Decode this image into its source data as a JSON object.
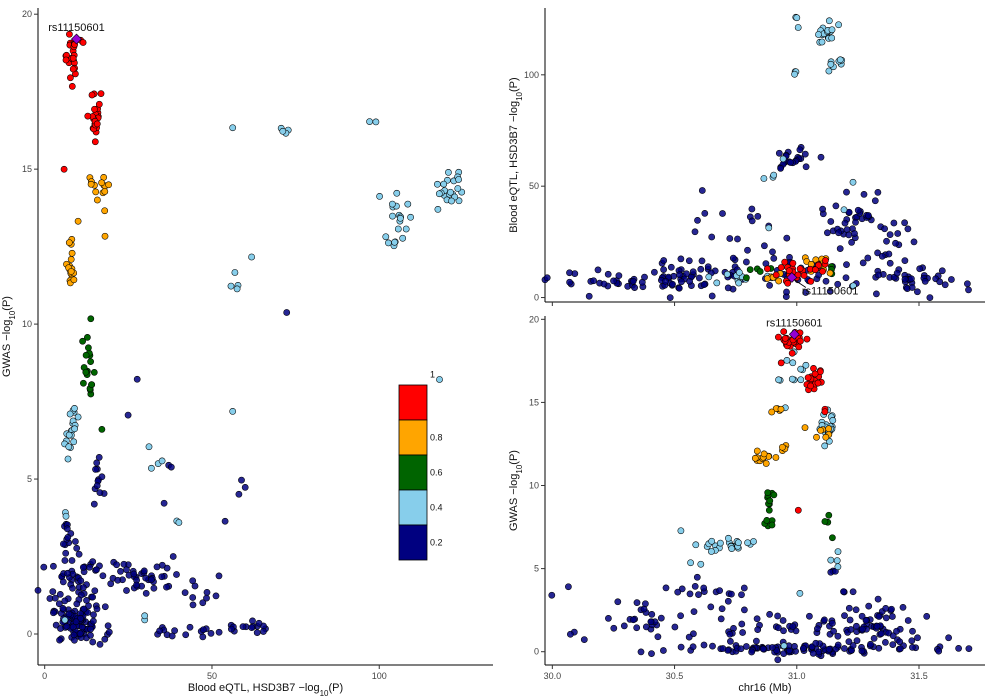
{
  "legend": {
    "breaks": [
      "0.2",
      "0.4",
      "0.6",
      "0.8",
      "1"
    ],
    "colors": [
      "#000080",
      "#87CEEB",
      "#006400",
      "#FFA500",
      "#FF0000"
    ]
  },
  "lead_color": "#9400D3",
  "lead_snp": "rs11150601",
  "chart_data": [
    {
      "type": "scatter",
      "panel": "left",
      "xlabel": "Blood eQTL, HSD3B7 −log10(P)",
      "ylabel": "GWAS −log10(P)",
      "xlim": [
        -2,
        134
      ],
      "ylim": [
        -1,
        20.2
      ],
      "xticks": [
        0,
        50,
        100
      ],
      "yticks": [
        0,
        5,
        10,
        15,
        20
      ],
      "annotation": "rs11150601",
      "lead": [
        9.5,
        19.2
      ],
      "groups": [
        {
          "r2_bin": "1",
          "clusters": [
            {
              "cx": 8,
              "cy": 18.7,
              "sx": 1.2,
              "sy": 0.4,
              "n": 24
            },
            {
              "cx": 15,
              "cy": 16.6,
              "sx": 1.0,
              "sy": 0.5,
              "n": 22
            },
            {
              "cx": 6,
              "cy": 14.7,
              "sx": 0.5,
              "sy": 0.1,
              "n": 1
            }
          ]
        },
        {
          "r2_bin": "0.8",
          "clusters": [
            {
              "cx": 8,
              "cy": 11.9,
              "sx": 0.6,
              "sy": 0.5,
              "n": 18
            },
            {
              "cx": 12,
              "cy": 14.5,
              "sx": 1.2,
              "sy": 0.2,
              "n": 5
            },
            {
              "cx": 18,
              "cy": 14.4,
              "sx": 0.9,
              "sy": 0.3,
              "n": 9
            },
            {
              "cx": 10,
              "cy": 13.4,
              "sx": 0.3,
              "sy": 0.1,
              "n": 1
            },
            {
              "cx": 18,
              "cy": 13.1,
              "sx": 0.3,
              "sy": 0.1,
              "n": 1
            }
          ]
        },
        {
          "r2_bin": "0.6",
          "clusters": [
            {
              "cx": 13,
              "cy": 9.0,
              "sx": 0.7,
              "sy": 0.5,
              "n": 10
            },
            {
              "cx": 13,
              "cy": 8.1,
              "sx": 1.0,
              "sy": 0.3,
              "n": 10
            },
            {
              "cx": 17,
              "cy": 6.7,
              "sx": 0.3,
              "sy": 0.1,
              "n": 1
            }
          ]
        },
        {
          "r2_bin": "0.4",
          "clusters": [
            {
              "cx": 8,
              "cy": 6.6,
              "sx": 1.0,
              "sy": 0.4,
              "n": 20
            },
            {
              "cx": 105,
              "cy": 13.3,
              "sx": 1.8,
              "sy": 0.5,
              "n": 20
            },
            {
              "cx": 121,
              "cy": 14.3,
              "sx": 2.5,
              "sy": 0.3,
              "n": 22
            },
            {
              "cx": 71,
              "cy": 16.25,
              "sx": 0.8,
              "sy": 0.05,
              "n": 4
            },
            {
              "cx": 98,
              "cy": 16.9,
              "sx": 1.2,
              "sy": 0.25,
              "n": 2
            },
            {
              "cx": 57,
              "cy": 11.3,
              "sx": 0.8,
              "sy": 0.25,
              "n": 4
            },
            {
              "cx": 33,
              "cy": 5.5,
              "sx": 1.5,
              "sy": 0.2,
              "n": 4
            },
            {
              "cx": 6,
              "cy": 3.9,
              "sx": 0.5,
              "sy": 0.1,
              "n": 2
            },
            {
              "cx": 56,
              "cy": 16.3,
              "sx": 0.2,
              "sy": 0.05,
              "n": 1
            },
            {
              "cx": 62,
              "cy": 12.2,
              "sx": 0.2,
              "sy": 0.05,
              "n": 1
            },
            {
              "cx": 56,
              "cy": 7.2,
              "sx": 0.2,
              "sy": 0.05,
              "n": 1
            },
            {
              "cx": 40,
              "cy": 3.6,
              "sx": 0.5,
              "sy": 0.05,
              "n": 2
            },
            {
              "cx": 30,
              "cy": 0.5,
              "sx": 0.5,
              "sy": 0.05,
              "n": 2
            },
            {
              "cx": 6,
              "cy": 0.4,
              "sx": 0.3,
              "sy": 0.05,
              "n": 1
            },
            {
              "cx": 118,
              "cy": 8.2,
              "sx": 0.3,
              "sy": 0.05,
              "n": 1
            }
          ]
        },
        {
          "r2_bin": "0.2",
          "clusters": [
            {
              "cx": 10,
              "cy": 0.3,
              "sx": 4.0,
              "sy": 0.3,
              "n": 80
            },
            {
              "cx": 10,
              "cy": 1.5,
              "sx": 4.0,
              "sy": 0.7,
              "n": 60
            },
            {
              "cx": 7,
              "cy": 3.2,
              "sx": 0.8,
              "sy": 0.6,
              "n": 12
            },
            {
              "cx": 16,
              "cy": 5.0,
              "sx": 1.2,
              "sy": 0.4,
              "n": 12
            },
            {
              "cx": 30,
              "cy": 1.9,
              "sx": 6.0,
              "sy": 0.3,
              "n": 40
            },
            {
              "cx": 47,
              "cy": 1.4,
              "sx": 2.5,
              "sy": 0.4,
              "n": 10
            },
            {
              "cx": 60,
              "cy": 0.2,
              "sx": 3.0,
              "sy": 0.12,
              "n": 15
            },
            {
              "cx": 38,
              "cy": 0.1,
              "sx": 6.0,
              "sy": 0.1,
              "n": 15
            },
            {
              "cx": 60,
              "cy": 4.6,
              "sx": 1.0,
              "sy": 0.25,
              "n": 3
            },
            {
              "cx": 28,
              "cy": 8.3,
              "sx": 0.3,
              "sy": 0.05,
              "n": 1
            },
            {
              "cx": 72,
              "cy": 10.4,
              "sx": 0.3,
              "sy": 0.05,
              "n": 1
            },
            {
              "cx": 107,
              "cy": 7.6,
              "sx": 0.3,
              "sy": 0.05,
              "n": 1
            },
            {
              "cx": 37,
              "cy": 5.3,
              "sx": 1.2,
              "sy": 0.2,
              "n": 2
            },
            {
              "cx": 54,
              "cy": 3.6,
              "sx": 0.3,
              "sy": 0.05,
              "n": 1
            },
            {
              "cx": 36,
              "cy": 4.2,
              "sx": 0.3,
              "sy": 0.05,
              "n": 1
            },
            {
              "cx": 25,
              "cy": 7.0,
              "sx": 0.3,
              "sy": 0.05,
              "n": 1
            }
          ]
        }
      ]
    },
    {
      "type": "scatter",
      "panel": "top-right",
      "xlabel": "",
      "ylabel": "Blood eQTL, HSD3B7 −log10(P)",
      "xlim": [
        29.97,
        31.77
      ],
      "ylim": [
        -2,
        130
      ],
      "xticks": [],
      "yticks": [
        0,
        50,
        100
      ],
      "annotation": "rs11150601",
      "lead": [
        30.98,
        9
      ],
      "groups": [
        {
          "r2_bin": "1",
          "clusters": [
            {
              "cx": 31.0,
              "cy": 11,
              "sx": 0.05,
              "sy": 2.5,
              "n": 22
            },
            {
              "cx": 31.1,
              "cy": 14,
              "sx": 0.03,
              "sy": 1.5,
              "n": 6
            }
          ]
        },
        {
          "r2_bin": "0.8",
          "clusters": [
            {
              "cx": 31.08,
              "cy": 15,
              "sx": 0.03,
              "sy": 2.0,
              "n": 10
            },
            {
              "cx": 30.9,
              "cy": 9,
              "sx": 0.02,
              "sy": 1.0,
              "n": 6
            }
          ]
        },
        {
          "r2_bin": "0.6",
          "clusters": [
            {
              "cx": 30.85,
              "cy": 11,
              "sx": 0.03,
              "sy": 1.5,
              "n": 5
            },
            {
              "cx": 31.15,
              "cy": 14,
              "sx": 0.02,
              "sy": 1.0,
              "n": 4
            }
          ]
        },
        {
          "r2_bin": "0.4",
          "clusters": [
            {
              "cx": 31.13,
              "cy": 118,
              "sx": 0.03,
              "sy": 3.0,
              "n": 16
            },
            {
              "cx": 31.15,
              "cy": 105,
              "sx": 0.02,
              "sy": 2.0,
              "n": 8
            },
            {
              "cx": 31.01,
              "cy": 125,
              "sx": 0.01,
              "sy": 2.0,
              "n": 3
            },
            {
              "cx": 30.99,
              "cy": 100,
              "sx": 0.01,
              "sy": 2.0,
              "n": 3
            },
            {
              "cx": 30.95,
              "cy": 62,
              "sx": 0.01,
              "sy": 1.0,
              "n": 1
            },
            {
              "cx": 30.88,
              "cy": 55,
              "sx": 0.03,
              "sy": 2.0,
              "n": 3
            },
            {
              "cx": 31.23,
              "cy": 52,
              "sx": 0.01,
              "sy": 1.0,
              "n": 1
            },
            {
              "cx": 31.2,
              "cy": 40,
              "sx": 0.01,
              "sy": 1.0,
              "n": 1
            },
            {
              "cx": 30.77,
              "cy": 9,
              "sx": 0.06,
              "sy": 1.0,
              "n": 14
            },
            {
              "cx": 30.89,
              "cy": 32,
              "sx": 0.01,
              "sy": 1.0,
              "n": 1
            },
            {
              "cx": 31.23,
              "cy": 6,
              "sx": 0.01,
              "sy": 1.0,
              "n": 1
            }
          ]
        },
        {
          "r2_bin": "0.2",
          "clusters": [
            {
              "cx": 30.97,
              "cy": 62,
              "sx": 0.05,
              "sy": 3.0,
              "n": 22
            },
            {
              "cx": 31.25,
              "cy": 36,
              "sx": 0.05,
              "sy": 5.0,
              "n": 20
            },
            {
              "cx": 31.38,
              "cy": 24,
              "sx": 0.04,
              "sy": 5.0,
              "n": 18
            },
            {
              "cx": 30.75,
              "cy": 26,
              "sx": 0.08,
              "sy": 10.0,
              "n": 20
            },
            {
              "cx": 30.6,
              "cy": 10,
              "sx": 0.1,
              "sy": 3.5,
              "n": 50
            },
            {
              "cx": 30.3,
              "cy": 7,
              "sx": 0.15,
              "sy": 2.5,
              "n": 35
            },
            {
              "cx": 31.45,
              "cy": 7,
              "sx": 0.12,
              "sy": 3.0,
              "n": 40
            },
            {
              "cx": 31.15,
              "cy": 30,
              "sx": 0.05,
              "sy": 6.0,
              "n": 15
            },
            {
              "cx": 31.0,
              "cy": 10,
              "sx": 0.1,
              "sy": 4.0,
              "n": 30
            },
            {
              "cx": 30.62,
              "cy": 38,
              "sx": 0.01,
              "sy": 1.0,
              "n": 1
            },
            {
              "cx": 31.3,
              "cy": 46,
              "sx": 0.02,
              "sy": 1.0,
              "n": 2
            }
          ]
        }
      ]
    },
    {
      "type": "scatter",
      "panel": "bottom-right",
      "xlabel": "chr16 (Mb)",
      "ylabel": "GWAS −log10(P)",
      "xlim": [
        29.97,
        31.77
      ],
      "ylim": [
        -0.8,
        20.2
      ],
      "xticks": [
        30.0,
        30.5,
        31.0,
        31.5
      ],
      "xtick_labels": [
        "30.0",
        "30.5",
        "31.0",
        "31.5"
      ],
      "yticks": [
        0,
        5,
        10,
        15,
        20
      ],
      "annotation": "rs11150601",
      "lead": [
        30.99,
        19.1
      ],
      "groups": [
        {
          "r2_bin": "1",
          "clusters": [
            {
              "cx": 30.98,
              "cy": 18.7,
              "sx": 0.03,
              "sy": 0.3,
              "n": 24
            },
            {
              "cx": 31.07,
              "cy": 16.3,
              "sx": 0.02,
              "sy": 0.3,
              "n": 18
            },
            {
              "cx": 31.09,
              "cy": 14.5,
              "sx": 0.015,
              "sy": 0.1,
              "n": 2
            },
            {
              "cx": 30.92,
              "cy": 17.2,
              "sx": 0.01,
              "sy": 0.1,
              "n": 1
            },
            {
              "cx": 31.01,
              "cy": 8.6,
              "sx": 0.01,
              "sy": 0.1,
              "n": 1
            }
          ]
        },
        {
          "r2_bin": "0.8",
          "clusters": [
            {
              "cx": 30.86,
              "cy": 11.7,
              "sx": 0.02,
              "sy": 0.2,
              "n": 14
            },
            {
              "cx": 30.92,
              "cy": 14.5,
              "sx": 0.015,
              "sy": 0.1,
              "n": 5
            },
            {
              "cx": 30.95,
              "cy": 12.3,
              "sx": 0.015,
              "sy": 0.2,
              "n": 4
            },
            {
              "cx": 31.1,
              "cy": 13.3,
              "sx": 0.02,
              "sy": 0.2,
              "n": 6
            },
            {
              "cx": 31.05,
              "cy": 13.5,
              "sx": 0.01,
              "sy": 0.1,
              "n": 1
            }
          ]
        },
        {
          "r2_bin": "0.6",
          "clusters": [
            {
              "cx": 30.89,
              "cy": 9.2,
              "sx": 0.01,
              "sy": 0.3,
              "n": 8
            },
            {
              "cx": 30.88,
              "cy": 8.1,
              "sx": 0.015,
              "sy": 0.3,
              "n": 6
            },
            {
              "cx": 31.13,
              "cy": 8.0,
              "sx": 0.01,
              "sy": 0.2,
              "n": 3
            },
            {
              "cx": 31.15,
              "cy": 6.7,
              "sx": 0.01,
              "sy": 0.1,
              "n": 1
            }
          ]
        },
        {
          "r2_bin": "0.4",
          "clusters": [
            {
              "cx": 30.73,
              "cy": 6.4,
              "sx": 0.06,
              "sy": 0.2,
              "n": 22
            },
            {
              "cx": 31.13,
              "cy": 13.5,
              "sx": 0.02,
              "sy": 0.4,
              "n": 20
            },
            {
              "cx": 31.02,
              "cy": 17.0,
              "sx": 0.02,
              "sy": 0.6,
              "n": 8
            },
            {
              "cx": 30.97,
              "cy": 16.3,
              "sx": 0.02,
              "sy": 0.1,
              "n": 4
            },
            {
              "cx": 31.15,
              "cy": 5.6,
              "sx": 0.01,
              "sy": 0.2,
              "n": 4
            },
            {
              "cx": 30.58,
              "cy": 5.5,
              "sx": 0.02,
              "sy": 0.2,
              "n": 2
            },
            {
              "cx": 30.53,
              "cy": 7.2,
              "sx": 0.01,
              "sy": 0.1,
              "n": 1
            },
            {
              "cx": 30.95,
              "cy": 14.7,
              "sx": 0.01,
              "sy": 0.1,
              "n": 1
            },
            {
              "cx": 31.0,
              "cy": 3.6,
              "sx": 0.01,
              "sy": 0.1,
              "n": 1
            },
            {
              "cx": 30.96,
              "cy": 0.4,
              "sx": 0.01,
              "sy": 0.1,
              "n": 1
            }
          ]
        },
        {
          "r2_bin": "0.2",
          "clusters": [
            {
              "cx": 31.0,
              "cy": 0.15,
              "sx": 0.25,
              "sy": 0.15,
              "n": 80
            },
            {
              "cx": 30.9,
              "cy": 1.5,
              "sx": 0.3,
              "sy": 0.7,
              "n": 60
            },
            {
              "cx": 31.3,
              "cy": 1.8,
              "sx": 0.1,
              "sy": 0.5,
              "n": 35
            },
            {
              "cx": 30.4,
              "cy": 2.0,
              "sx": 0.1,
              "sy": 0.4,
              "n": 20
            },
            {
              "cx": 30.6,
              "cy": 3.8,
              "sx": 0.05,
              "sy": 0.6,
              "n": 10
            },
            {
              "cx": 31.4,
              "cy": 0.6,
              "sx": 0.12,
              "sy": 0.4,
              "n": 25
            },
            {
              "cx": 30.05,
              "cy": 2.5,
              "sx": 0.05,
              "sy": 1.0,
              "n": 4
            },
            {
              "cx": 30.75,
              "cy": 3.3,
              "sx": 0.05,
              "sy": 0.4,
              "n": 6
            },
            {
              "cx": 31.14,
              "cy": 4.9,
              "sx": 0.02,
              "sy": 0.2,
              "n": 3
            },
            {
              "cx": 31.2,
              "cy": 3.5,
              "sx": 0.02,
              "sy": 0.2,
              "n": 3
            },
            {
              "cx": 31.38,
              "cy": 2.5,
              "sx": 0.02,
              "sy": 0.2,
              "n": 4
            },
            {
              "cx": 31.7,
              "cy": 0.2,
              "sx": 0.02,
              "sy": 0.1,
              "n": 1
            },
            {
              "cx": 30.13,
              "cy": 0.6,
              "sx": 0.02,
              "sy": 0.1,
              "n": 1
            }
          ]
        }
      ]
    }
  ]
}
